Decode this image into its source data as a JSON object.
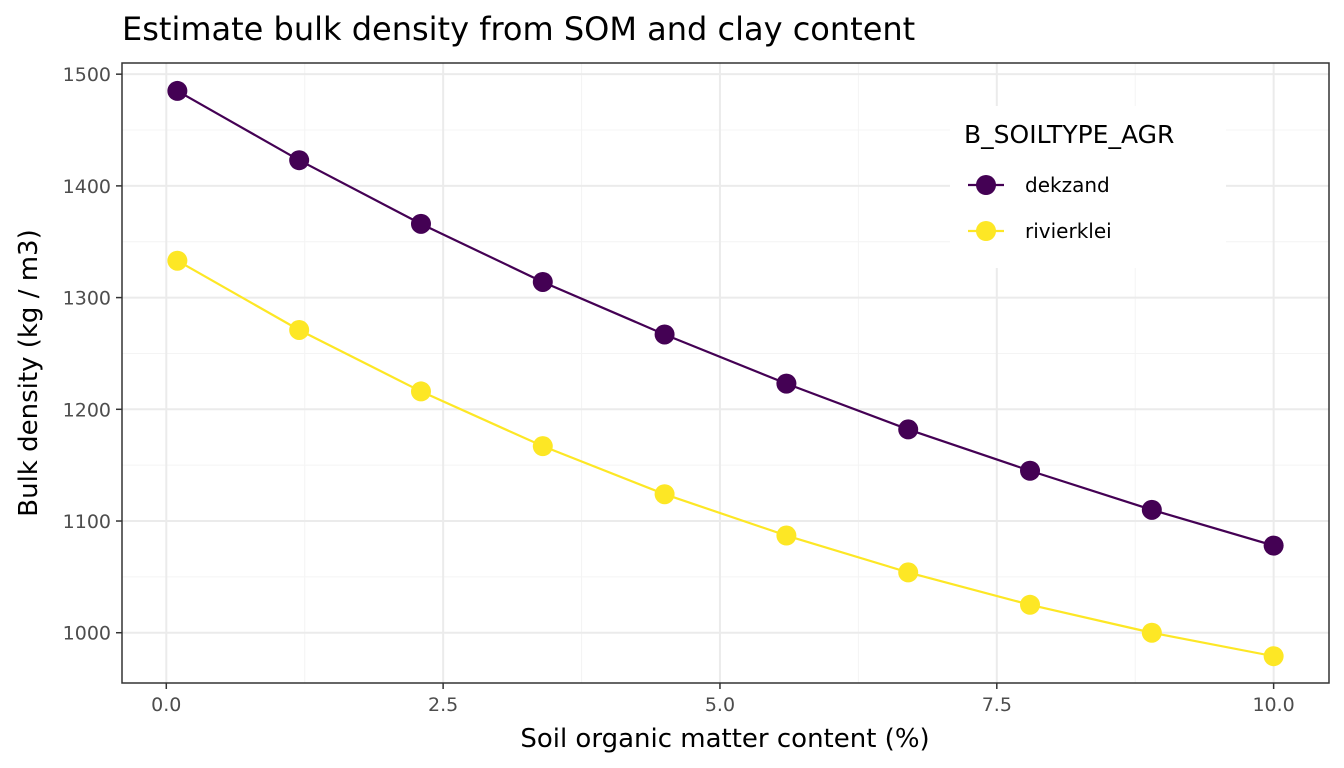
{
  "chart_data": {
    "type": "line",
    "title": "Estimate bulk density from SOM and clay content",
    "xlabel": "Soil organic matter content (%)",
    "ylabel": "Bulk density (kg / m3)",
    "xlim": [
      -0.4,
      10.5
    ],
    "ylim": [
      955,
      1510
    ],
    "x_ticks": [
      0,
      2.5,
      5,
      7.5,
      10
    ],
    "x_tick_labels": [
      "0.0",
      "2.5",
      "5.0",
      "7.5",
      "10.0"
    ],
    "y_ticks": [
      1000,
      1100,
      1200,
      1300,
      1400,
      1500
    ],
    "y_tick_labels": [
      "1000",
      "1100",
      "1200",
      "1300",
      "1400",
      "1500"
    ],
    "x": [
      0.1,
      1.2,
      2.3,
      3.4,
      4.5,
      5.6,
      6.7,
      7.8,
      8.9,
      10.0
    ],
    "series": [
      {
        "name": "dekzand",
        "color": "#440154",
        "values": [
          1485,
          1423,
          1366,
          1314,
          1267,
          1223,
          1182,
          1145,
          1110,
          1078
        ]
      },
      {
        "name": "rivierklei",
        "color": "#fde725",
        "values": [
          1333,
          1271,
          1216,
          1167,
          1124,
          1087,
          1054,
          1025,
          1000,
          979
        ]
      }
    ],
    "legend": {
      "title": "B_SOILTYPE_AGR",
      "position": "top-right"
    },
    "grid": true
  }
}
